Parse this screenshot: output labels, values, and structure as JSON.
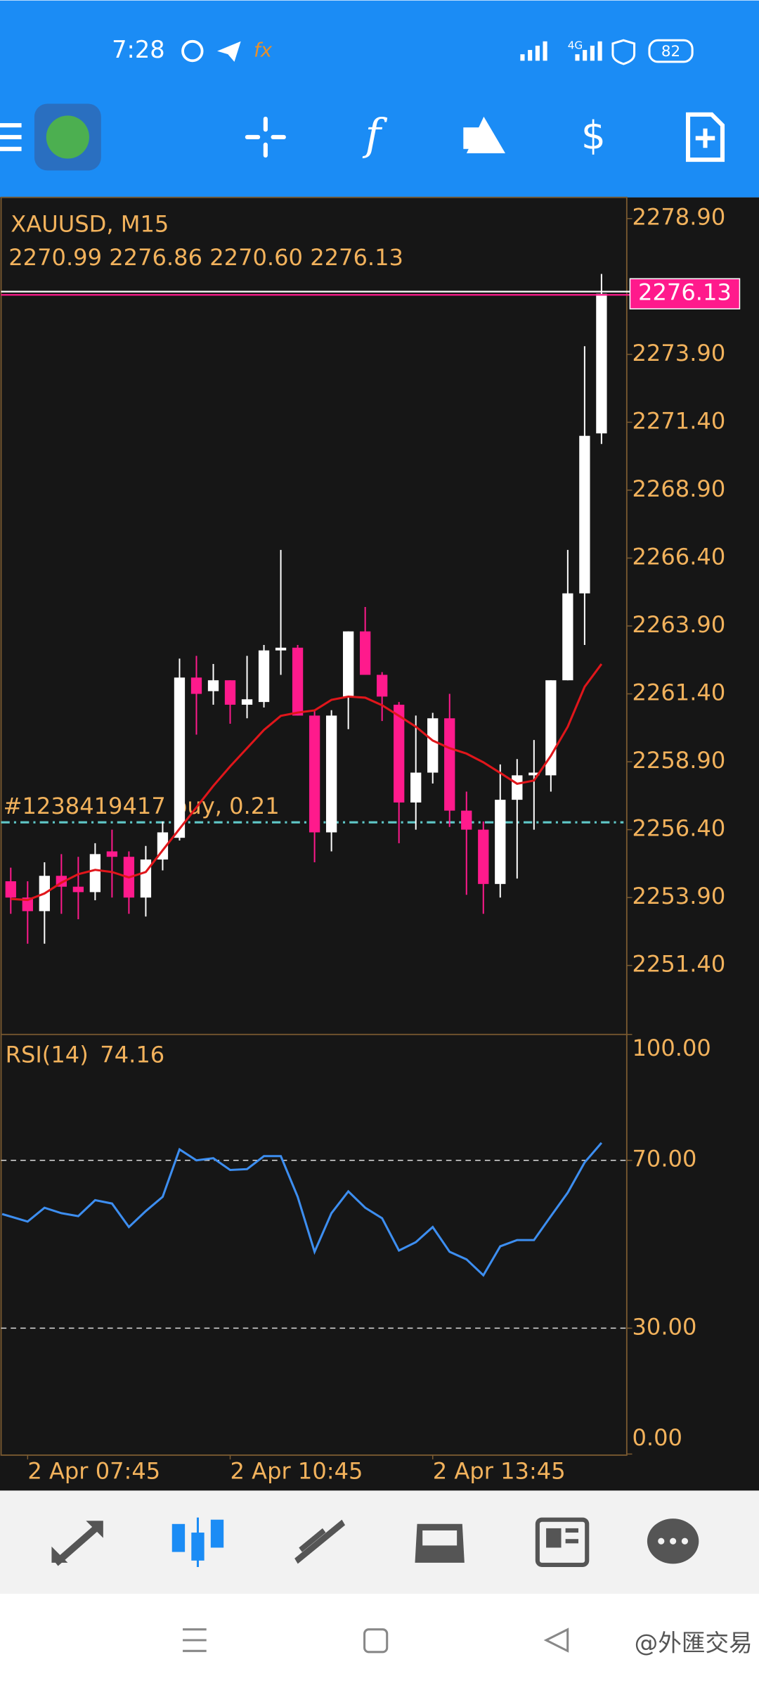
{
  "status_bar": {
    "time": "7:28",
    "network": "4G",
    "battery": "82"
  },
  "chart_data": [
    {
      "type": "candlestick",
      "title": "XAUUSD, M15",
      "ohlc_label": "2270.99 2276.86 2270.60 2276.13",
      "categories": [
        null,
        "2 Apr 07:45",
        null,
        null,
        null,
        null,
        null,
        null,
        null,
        null,
        null,
        null,
        null,
        "2 Apr 10:45",
        null,
        null,
        null,
        null,
        null,
        null,
        null,
        null,
        null,
        null,
        null,
        "2 Apr 13:45",
        null,
        null,
        null,
        null,
        null,
        null,
        null,
        null,
        null,
        null
      ],
      "open": [
        2254.5,
        2253.9,
        2253.4,
        2254.7,
        2254.3,
        2254.1,
        2255.6,
        2255.4,
        2253.9,
        2255.3,
        2256.1,
        2262.0,
        2261.5,
        2261.9,
        2261.0,
        2261.1,
        2263.0,
        2263.1,
        2260.6,
        2256.3,
        2261.3,
        2263.7,
        2262.1,
        2261.0,
        2257.4,
        2258.5,
        2260.5,
        2257.1,
        2256.4,
        2254.4,
        2257.5,
        2258.4,
        2258.4,
        2261.9,
        2265.1,
        2270.99
      ],
      "high": [
        2255.0,
        2254.5,
        2255.2,
        2255.5,
        2255.4,
        2255.9,
        2256.4,
        2255.6,
        2255.8,
        2256.7,
        2262.7,
        2262.8,
        2262.5,
        2261.9,
        2262.8,
        2263.2,
        2266.7,
        2263.2,
        2260.8,
        2260.8,
        2263.7,
        2264.6,
        2262.2,
        2261.1,
        2260.6,
        2260.7,
        2261.4,
        2257.8,
        2256.7,
        2258.8,
        2259.0,
        2259.7,
        2261.9,
        2266.7,
        2274.2,
        2276.86
      ],
      "low": [
        2253.3,
        2252.2,
        2252.2,
        2253.3,
        2253.1,
        2253.8,
        2253.9,
        2253.3,
        2253.2,
        2254.9,
        2256.0,
        2259.9,
        2261.0,
        2260.3,
        2260.5,
        2260.9,
        2262.1,
        2260.6,
        2255.2,
        2255.6,
        2260.1,
        2262.1,
        2260.4,
        2255.9,
        2256.4,
        2258.1,
        2256.5,
        2254.0,
        2253.3,
        2253.9,
        2254.6,
        2256.4,
        2257.8,
        2261.9,
        2263.2,
        2270.6
      ],
      "close": [
        2253.9,
        2253.4,
        2254.7,
        2254.3,
        2254.1,
        2255.5,
        2255.4,
        2253.9,
        2255.3,
        2256.3,
        2262.0,
        2261.4,
        2261.9,
        2261.0,
        2261.2,
        2263.0,
        2263.1,
        2260.6,
        2256.3,
        2260.6,
        2263.7,
        2262.1,
        2261.3,
        2257.4,
        2258.5,
        2260.5,
        2257.1,
        2256.4,
        2254.4,
        2257.5,
        2258.4,
        2258.5,
        2261.9,
        2265.1,
        2270.9,
        2276.13
      ],
      "up_color": "#ffffff",
      "down_color": "#ff1a8c",
      "ma": {
        "color": "#e0161b",
        "values": [
          2253.85,
          2253.81,
          2254.05,
          2254.45,
          2254.76,
          2254.92,
          2254.84,
          2254.64,
          2254.84,
          2255.64,
          2256.43,
          2257.22,
          2258.01,
          2258.73,
          2259.4,
          2260.07,
          2260.59,
          2260.71,
          2260.79,
          2261.18,
          2261.3,
          2261.26,
          2260.98,
          2260.59,
          2260.19,
          2259.68,
          2259.4,
          2259.2,
          2258.88,
          2258.49,
          2258.09,
          2258.21,
          2259.12,
          2260.19,
          2261.66,
          2262.5
        ]
      },
      "order": {
        "label": "#1238419417 buy, 0.21",
        "price": 2256.67,
        "color": "#5fc8c8"
      },
      "ylim": [
        2248.86,
        2279.68
      ],
      "yticks": [
        {
          "value": 2278.9,
          "label": "2278.90"
        },
        {
          "value": 2273.9,
          "label": "2273.90"
        },
        {
          "value": 2271.4,
          "label": "2271.40"
        },
        {
          "value": 2268.9,
          "label": "2268.90"
        },
        {
          "value": 2266.4,
          "label": "2266.40"
        },
        {
          "value": 2263.9,
          "label": "2263.90"
        },
        {
          "value": 2261.4,
          "label": "2261.40"
        },
        {
          "value": 2258.9,
          "label": "2258.90"
        },
        {
          "value": 2256.4,
          "label": "2256.40"
        },
        {
          "value": 2253.9,
          "label": "2253.90"
        },
        {
          "value": 2251.4,
          "label": "2251.40"
        }
      ]
    },
    {
      "type": "line",
      "title": "RSI(14)",
      "color": "#3d8ef0",
      "values": [
        57.2,
        55.4,
        58.7,
        57.4,
        56.7,
        60.5,
        59.7,
        54.1,
        57.9,
        61.3,
        72.6,
        70.0,
        70.5,
        67.7,
        67.9,
        71.0,
        71.0,
        61.3,
        48.2,
        57.4,
        62.6,
        58.7,
        56.2,
        48.5,
        50.5,
        54.1,
        48.2,
        46.4,
        42.6,
        49.5,
        51.0,
        51.0,
        56.7,
        62.3,
        69.5,
        74.16
      ],
      "ylim": [
        0,
        100
      ],
      "yticks": [
        {
          "value": 100,
          "label": "100.00"
        },
        {
          "value": 70,
          "label": "70.00"
        },
        {
          "value": 30,
          "label": "30.00"
        },
        {
          "value": 0,
          "label": "0.00"
        }
      ],
      "levels": [
        70,
        30
      ]
    }
  ],
  "watermark": "@外匯交易"
}
